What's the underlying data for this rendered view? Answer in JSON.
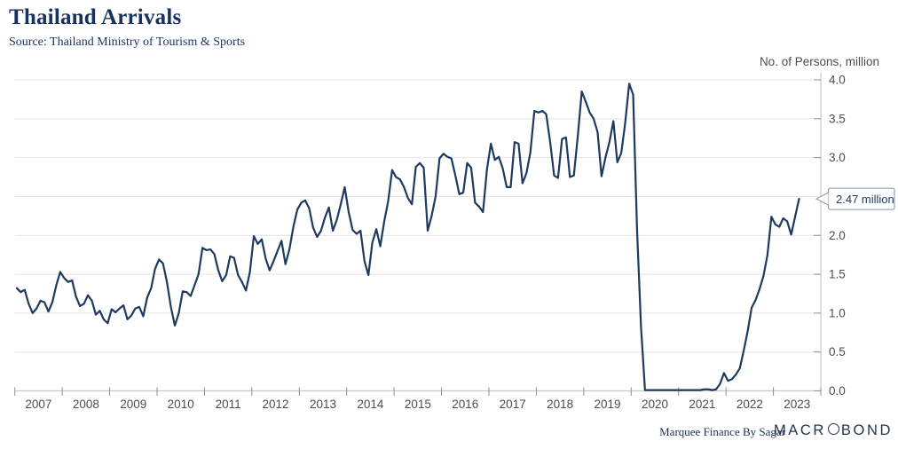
{
  "header": {
    "title": "Thailand Arrivals",
    "subtitle": "Source: Thailand Ministry of Tourism & Sports"
  },
  "footer": {
    "credit": "Marquee Finance By Sagar",
    "logo_pre": "MACR",
    "logo_post": "BOND"
  },
  "chart_data": {
    "type": "line",
    "title": "Thailand Arrivals",
    "unit_label": "No. of Persons, million",
    "frequency": "monthly",
    "start": "2007-01",
    "end": "2023-07",
    "x_tick_labels": [
      "2007",
      "2008",
      "2009",
      "2010",
      "2011",
      "2012",
      "2013",
      "2014",
      "2015",
      "2016",
      "2017",
      "2018",
      "2019",
      "2020",
      "2021",
      "2022",
      "2023"
    ],
    "ylim": [
      0,
      4.0
    ],
    "grid_interval": 0.5,
    "grid": "horizontal",
    "legend": "none",
    "y_axis_side": "right",
    "y_tick_labels": [
      "4.0",
      "3.5",
      "3.0",
      "2.0",
      "1.5",
      "1.0",
      "0.5",
      "0.0"
    ],
    "annotation": {
      "label": "2.47 million",
      "value": 2.47
    },
    "series": [
      {
        "name": "Thailand Arrivals",
        "values": [
          1.32,
          1.27,
          1.3,
          1.12,
          1.0,
          1.06,
          1.16,
          1.14,
          1.02,
          1.14,
          1.36,
          1.53,
          1.45,
          1.4,
          1.42,
          1.21,
          1.09,
          1.12,
          1.23,
          1.16,
          0.98,
          1.03,
          0.92,
          0.87,
          1.05,
          1.01,
          1.06,
          1.1,
          0.92,
          0.97,
          1.06,
          1.08,
          0.96,
          1.2,
          1.32,
          1.57,
          1.69,
          1.64,
          1.4,
          1.08,
          0.84,
          1.0,
          1.28,
          1.27,
          1.22,
          1.36,
          1.5,
          1.84,
          1.81,
          1.82,
          1.76,
          1.55,
          1.41,
          1.49,
          1.73,
          1.71,
          1.49,
          1.4,
          1.29,
          1.53,
          1.99,
          1.89,
          1.95,
          1.7,
          1.55,
          1.67,
          1.8,
          1.93,
          1.63,
          1.82,
          2.11,
          2.33,
          2.42,
          2.45,
          2.35,
          2.1,
          1.98,
          2.06,
          2.23,
          2.36,
          2.06,
          2.2,
          2.4,
          2.62,
          2.3,
          2.07,
          2.02,
          2.06,
          1.67,
          1.49,
          1.91,
          2.08,
          1.86,
          2.18,
          2.44,
          2.84,
          2.75,
          2.72,
          2.62,
          2.48,
          2.4,
          2.88,
          2.93,
          2.87,
          2.06,
          2.25,
          2.5,
          2.99,
          3.05,
          3.01,
          2.99,
          2.77,
          2.53,
          2.55,
          2.93,
          2.87,
          2.42,
          2.37,
          2.3,
          2.85,
          3.18,
          2.97,
          3.01,
          2.86,
          2.62,
          2.62,
          3.2,
          3.18,
          2.67,
          2.8,
          3.07,
          3.6,
          3.58,
          3.6,
          3.56,
          3.2,
          2.77,
          2.74,
          3.24,
          3.26,
          2.75,
          2.77,
          3.28,
          3.85,
          3.72,
          3.58,
          3.5,
          3.33,
          2.76,
          3.0,
          3.2,
          3.47,
          2.94,
          3.06,
          3.45,
          3.95,
          3.81,
          2.06,
          0.82,
          0.01,
          0.01,
          0.01,
          0.01,
          0.01,
          0.01,
          0.01,
          0.01,
          0.01,
          0.01,
          0.01,
          0.01,
          0.01,
          0.01,
          0.01,
          0.02,
          0.02,
          0.01,
          0.02,
          0.09,
          0.23,
          0.13,
          0.15,
          0.21,
          0.29,
          0.52,
          0.77,
          1.07,
          1.17,
          1.31,
          1.48,
          1.75,
          2.24,
          2.14,
          2.11,
          2.22,
          2.18,
          2.01,
          2.24,
          2.47
        ]
      }
    ],
    "colors": {
      "line": "#1e3a5f",
      "grid": "#e4e4e4",
      "axis": "#c8c8c8",
      "tick": "#8f8f8f",
      "label": "#4d4d4d",
      "annotation_border": "#8091ac",
      "annotation_text": "#1e3a5f",
      "title": "#17325e"
    }
  }
}
